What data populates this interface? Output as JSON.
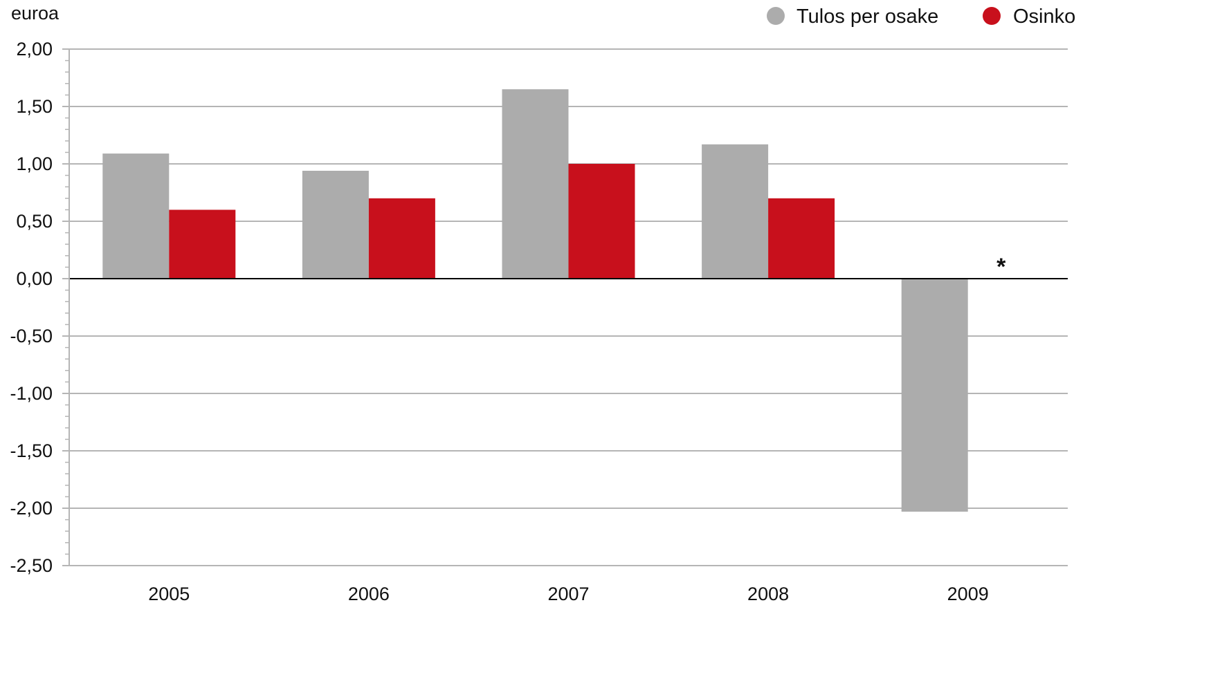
{
  "chart_data": {
    "type": "bar",
    "unit_label": "euroa",
    "categories": [
      "2005",
      "2006",
      "2007",
      "2008",
      "2009"
    ],
    "series": [
      {
        "name": "Tulos per osake",
        "color": "#acacac",
        "values": [
          1.09,
          0.94,
          1.65,
          1.17,
          -2.03
        ]
      },
      {
        "name": "Osinko",
        "color": "#c8101c",
        "values": [
          0.6,
          0.7,
          1.0,
          0.7,
          null
        ]
      }
    ],
    "annotation": {
      "text": "*",
      "category": "2009",
      "series": "Osinko"
    },
    "ylim": [
      -2.5,
      2.0
    ],
    "yticks": [
      2.0,
      1.5,
      1.0,
      0.5,
      0.0,
      -0.5,
      -1.0,
      -1.5,
      -2.0,
      -2.5
    ],
    "ytick_labels": [
      "2,00",
      "1,50",
      "1,00",
      "0,50",
      "0,00",
      "-0,50",
      "-1,00",
      "-1,50",
      "-2,00",
      "-2,50"
    ],
    "grid": true,
    "legend_position": "top-right"
  }
}
